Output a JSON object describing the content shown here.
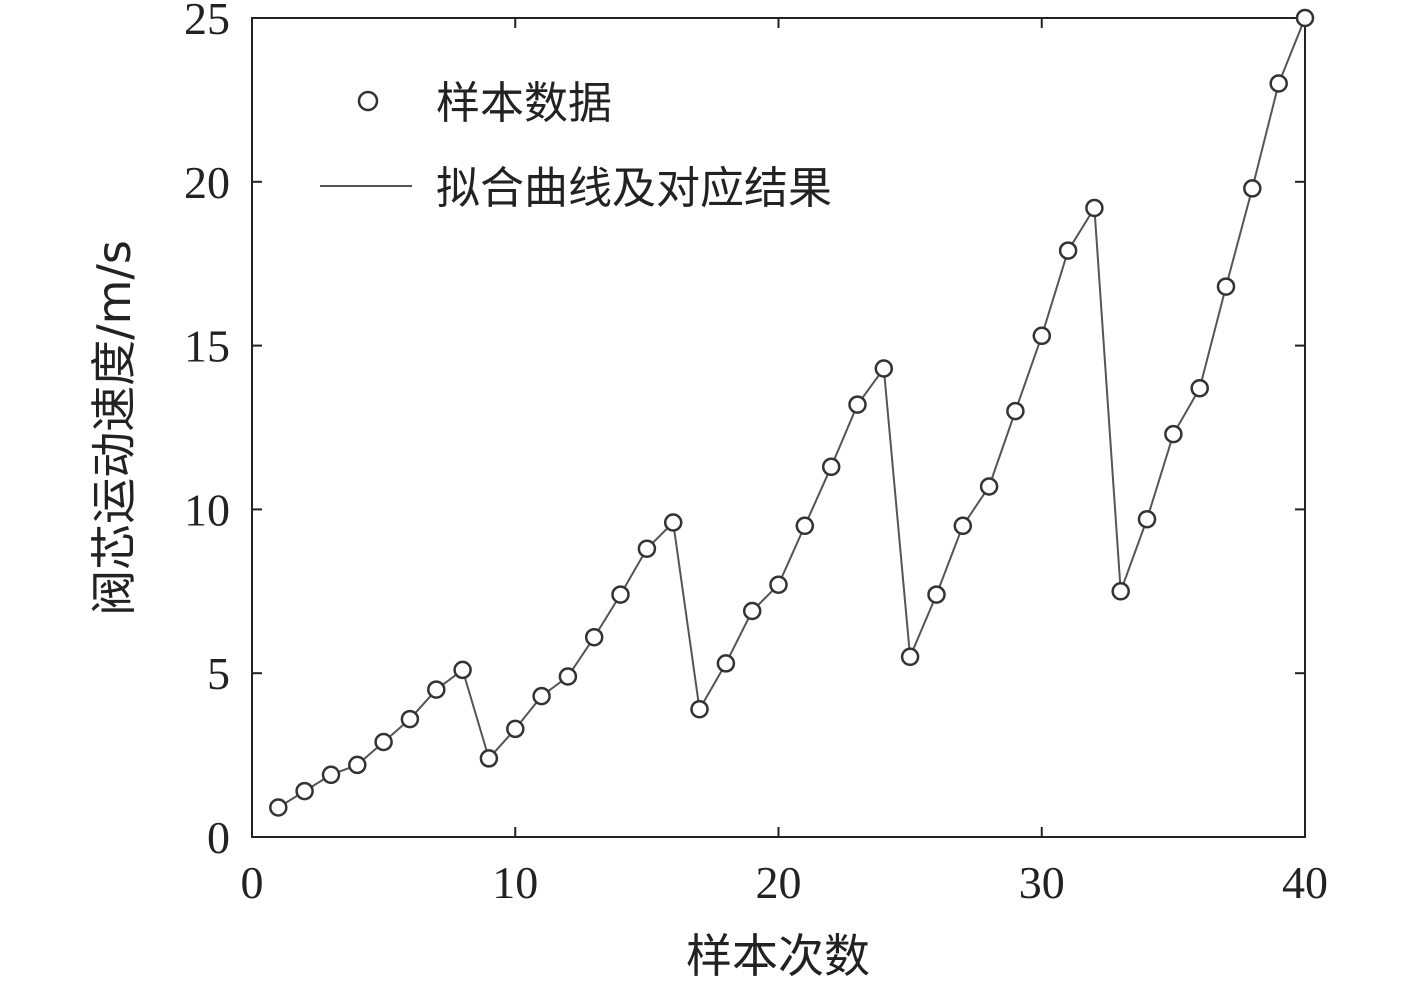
{
  "chart_data": {
    "type": "line",
    "xlabel": "样本次数",
    "ylabel": "阀芯运动速度/m/s",
    "xlim": [
      0,
      40
    ],
    "ylim": [
      0,
      25
    ],
    "xticks": [
      "0",
      "10",
      "20",
      "30",
      "40"
    ],
    "yticks": [
      "0",
      "5",
      "10",
      "15",
      "20",
      "25"
    ],
    "grid": false,
    "legend_position": "top-left",
    "legend": {
      "markers_label": "样本数据",
      "line_label": "拟合曲线及对应结果"
    },
    "series": [
      {
        "name": "样本数据",
        "style": "markers",
        "x": [
          1,
          2,
          3,
          4,
          5,
          6,
          7,
          8,
          9,
          10,
          11,
          12,
          13,
          14,
          15,
          16,
          17,
          18,
          19,
          20,
          21,
          22,
          23,
          24,
          25,
          26,
          27,
          28,
          29,
          30,
          31,
          32,
          33,
          34,
          35,
          36,
          37,
          38,
          39,
          40
        ],
        "values": [
          0.9,
          1.4,
          1.9,
          2.2,
          2.9,
          3.6,
          4.5,
          5.1,
          2.4,
          3.3,
          4.3,
          4.9,
          6.1,
          7.4,
          8.8,
          9.6,
          3.9,
          5.3,
          6.9,
          7.7,
          9.5,
          11.3,
          13.2,
          14.3,
          5.5,
          7.4,
          9.5,
          10.7,
          13.0,
          15.3,
          17.9,
          19.2,
          7.5,
          9.7,
          12.3,
          13.7,
          16.8,
          19.8,
          23.0,
          25.0
        ]
      },
      {
        "name": "拟合曲线及对应结果",
        "style": "line",
        "x": [
          1,
          2,
          3,
          4,
          5,
          6,
          7,
          8,
          9,
          10,
          11,
          12,
          13,
          14,
          15,
          16,
          17,
          18,
          19,
          20,
          21,
          22,
          23,
          24,
          25,
          26,
          27,
          28,
          29,
          30,
          31,
          32,
          33,
          34,
          35,
          36,
          37,
          38,
          39,
          40
        ],
        "values": [
          0.9,
          1.4,
          1.9,
          2.2,
          2.9,
          3.6,
          4.5,
          5.1,
          2.4,
          3.3,
          4.3,
          4.9,
          6.1,
          7.4,
          8.8,
          9.6,
          3.9,
          5.3,
          6.9,
          7.7,
          9.5,
          11.3,
          13.2,
          14.3,
          5.5,
          7.4,
          9.5,
          10.7,
          13.0,
          15.3,
          17.9,
          19.2,
          7.5,
          9.7,
          12.3,
          13.7,
          16.8,
          19.8,
          23.0,
          25.0
        ]
      }
    ],
    "colors": {
      "line": "#555555",
      "marker_stroke": "#333333",
      "axis": "#222222"
    }
  }
}
